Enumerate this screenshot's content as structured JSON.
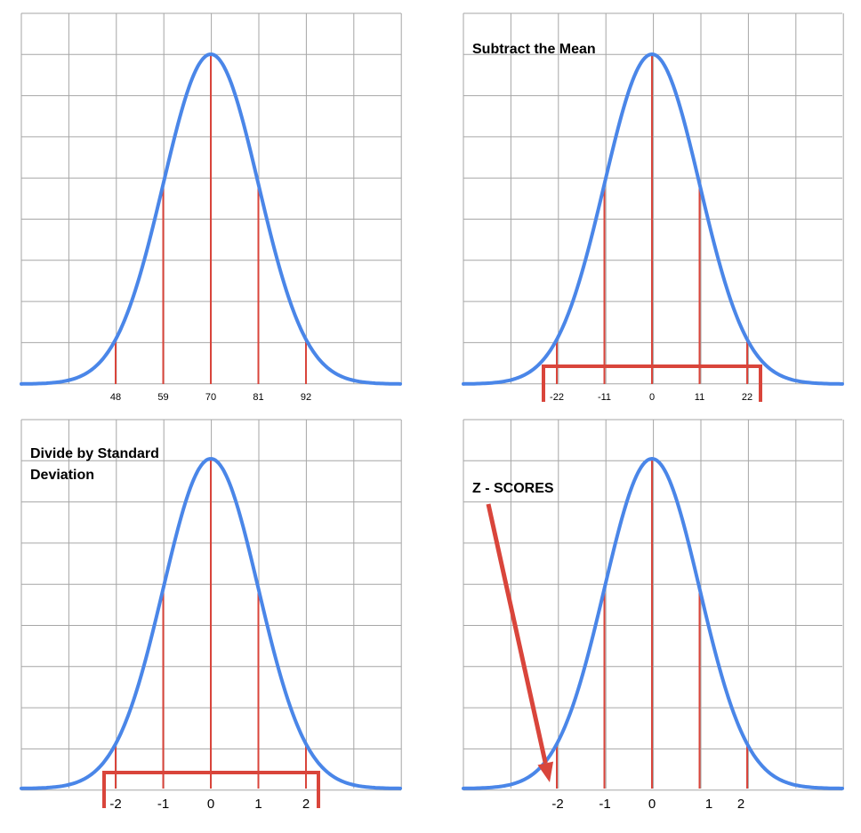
{
  "chart_data": [
    {
      "type": "line",
      "title": "",
      "x_ticks": [
        "48",
        "59",
        "70",
        "81",
        "92"
      ],
      "series": [
        {
          "mean": 70,
          "sd": 11
        }
      ],
      "marked_values": [
        48,
        59,
        70,
        81,
        92
      ],
      "grid": true
    },
    {
      "type": "line",
      "title": "Subtract the Mean",
      "x_ticks": [
        "-22",
        "-11",
        "0",
        "11",
        "22"
      ],
      "series": [
        {
          "mean": 0,
          "sd": 11
        }
      ],
      "marked_values": [
        -22,
        -11,
        0,
        11,
        22
      ],
      "grid": true
    },
    {
      "type": "line",
      "title_lines": [
        "Divide by Standard",
        "Deviation"
      ],
      "x_ticks": [
        "-2",
        "-1",
        "0",
        "1",
        "2"
      ],
      "series": [
        {
          "mean": 0,
          "sd": 1
        }
      ],
      "marked_values": [
        -2,
        -1,
        0,
        1,
        2
      ],
      "grid": true
    },
    {
      "type": "line",
      "title": "Z - SCORES",
      "x_ticks": [
        "-2",
        "-1",
        "0",
        "1",
        "2"
      ],
      "series": [
        {
          "mean": 0,
          "sd": 1
        }
      ],
      "marked_values": [
        -2,
        -1,
        0,
        1,
        2
      ],
      "grid": true
    }
  ],
  "colors": {
    "curve": "#4a86e8",
    "markers": "#d9453b",
    "grid": "#a6a6a6"
  }
}
